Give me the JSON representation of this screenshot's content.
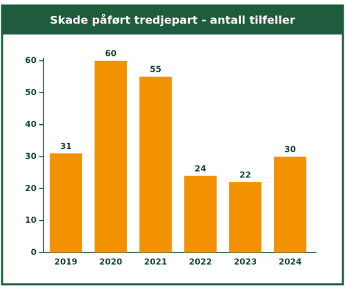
{
  "chart_data": {
    "type": "bar",
    "title": "Skade påført tredjepart - antall tilfeller",
    "categories": [
      "2019",
      "2020",
      "2021",
      "2022",
      "2023",
      "2024"
    ],
    "values": [
      31,
      60,
      55,
      24,
      22,
      30
    ],
    "color": "#f39200",
    "ylim": [
      0,
      60
    ],
    "yticks": [
      0,
      10,
      20,
      30,
      40,
      50,
      60
    ],
    "grid": false
  }
}
